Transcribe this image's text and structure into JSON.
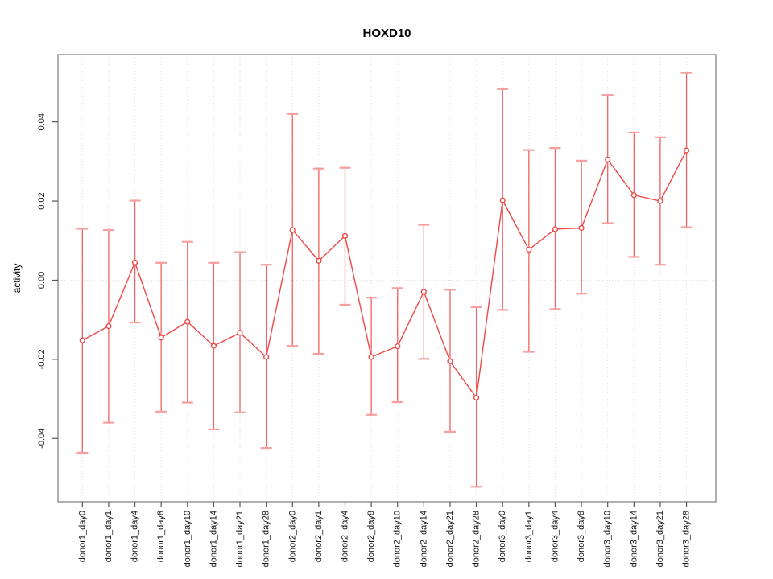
{
  "title": "HOXD10",
  "chart_data": {
    "type": "line",
    "title": "HOXD10",
    "xlabel": "",
    "ylabel": "activity",
    "legend": "none",
    "grid": "vertical dotted gridline at each category; horizontal dotted line at y=0",
    "ylim": [
      -0.056,
      0.057
    ],
    "yticks": [
      -0.04,
      -0.02,
      0,
      0.02,
      0.04
    ],
    "ytick_labels": [
      "-0.04",
      "-0.02",
      "0.00",
      "0.02",
      "0.04"
    ],
    "categories": [
      "donor1_day0",
      "donor1_day1",
      "donor1_day4",
      "donor1_day8",
      "donor1_day10",
      "donor1_day14",
      "donor1_day21",
      "donor1_day28",
      "donor2_day0",
      "donor2_day1",
      "donor2_day4",
      "donor2_day8",
      "donor2_day10",
      "donor2_day14",
      "donor2_day21",
      "donor2_day28",
      "donor3_day0",
      "donor3_day1",
      "donor3_day4",
      "donor3_day8",
      "donor3_day10",
      "donor3_day14",
      "donor3_day21",
      "donor3_day28"
    ],
    "series": [
      {
        "name": "activity",
        "marker": "open-circle",
        "values": [
          -0.0152,
          -0.0116,
          0.0045,
          -0.0145,
          -0.0105,
          -0.0166,
          -0.0133,
          -0.0194,
          0.0127,
          0.0049,
          0.0112,
          -0.0194,
          -0.0167,
          -0.0029,
          -0.0205,
          -0.0297,
          0.0202,
          0.0077,
          0.0129,
          0.0132,
          0.0305,
          0.0215,
          0.02,
          0.0328
        ],
        "error_high": [
          0.013,
          0.0127,
          0.0201,
          0.0044,
          0.0097,
          0.0044,
          0.0071,
          0.0039,
          0.042,
          0.0282,
          0.0284,
          -0.0044,
          -0.002,
          0.014,
          -0.0024,
          -0.0068,
          0.0483,
          0.0329,
          0.0334,
          0.0302,
          0.0468,
          0.0373,
          0.0361,
          0.0524
        ],
        "error_low": [
          -0.0436,
          -0.036,
          -0.0107,
          -0.0332,
          -0.0309,
          -0.0377,
          -0.0334,
          -0.0424,
          -0.0166,
          -0.0186,
          -0.0062,
          -0.034,
          -0.0308,
          -0.0199,
          -0.0383,
          -0.0522,
          -0.0075,
          -0.0181,
          -0.0073,
          -0.0034,
          0.0144,
          0.0059,
          0.0039,
          0.0134
        ]
      }
    ],
    "colors": {
      "series": "#ef4747",
      "series_light": "#f79e9e",
      "grid": "#dedede",
      "frame": "#8f8f8f",
      "tick": "#555555",
      "text": "#000000",
      "background": "#ffffff"
    }
  }
}
